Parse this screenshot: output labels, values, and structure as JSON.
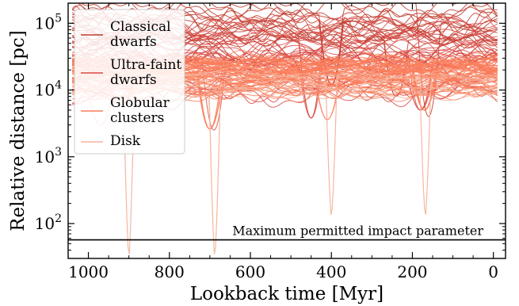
{
  "chart_data": {
    "type": "line",
    "xlabel": "Lookback time [Myr]",
    "ylabel": "Relative distance [pc]",
    "x_range": [
      1050,
      -30
    ],
    "x_reversed": true,
    "y_range": [
      30,
      200000
    ],
    "y_scale": "log",
    "x_ticks": [
      {
        "value": 1000,
        "label": "1000"
      },
      {
        "value": 800,
        "label": "800"
      },
      {
        "value": 600,
        "label": "600"
      },
      {
        "value": 400,
        "label": "400"
      },
      {
        "value": 200,
        "label": "200"
      },
      {
        "value": 0,
        "label": "0"
      }
    ],
    "y_ticks": [
      {
        "value": 100,
        "base": "10",
        "exp": "2"
      },
      {
        "value": 1000,
        "base": "10",
        "exp": "3"
      },
      {
        "value": 10000,
        "base": "10",
        "exp": "4"
      },
      {
        "value": 100000,
        "base": "10",
        "exp": "5"
      }
    ],
    "legend": {
      "placement": "top-left",
      "entries": [
        {
          "lines": [
            "Classical",
            "dwarfs"
          ],
          "color": "#c0392b"
        },
        {
          "lines": [
            "Ultra-faint",
            "dwarfs"
          ],
          "color": "#d94a45"
        },
        {
          "lines": [
            "Globular",
            "clusters"
          ],
          "color": "#fa7e5c"
        },
        {
          "lines": [
            "Disk"
          ],
          "color": "#f5b39a"
        }
      ]
    },
    "threshold": {
      "value": 57,
      "label": "Maximum permitted impact parameter",
      "color": "#000000"
    },
    "series_groups": [
      {
        "name": "Classical dwarfs",
        "color": "#c0392b",
        "count": 22,
        "level_min": 25000,
        "level_max": 180000,
        "spread": 0.35,
        "dips": [
          {
            "t": 400,
            "min": 12000
          },
          {
            "t": 240,
            "min": 8000
          },
          {
            "t": 160,
            "min": 4000
          }
        ]
      },
      {
        "name": "Ultra-faint dwarfs",
        "color": "#d94a45",
        "count": 30,
        "level_min": 8000,
        "level_max": 90000,
        "spread": 0.35,
        "dips": [
          {
            "t": 690,
            "min": 2500
          },
          {
            "t": 450,
            "min": 3800
          },
          {
            "t": 180,
            "min": 5000
          }
        ]
      },
      {
        "name": "Globular clusters",
        "color": "#fa7e5c",
        "count": 60,
        "level_min": 9000,
        "level_max": 30000,
        "spread": 0.2,
        "dips": [
          {
            "t": 700,
            "min": 2600
          },
          {
            "t": 410,
            "min": 3600
          },
          {
            "t": 170,
            "min": 5000
          },
          {
            "t": 920,
            "min": 6000
          }
        ]
      },
      {
        "name": "Disk",
        "color": "#f5b39a",
        "count": 10,
        "level_min": 8000,
        "level_max": 22000,
        "spread": 0.15,
        "dips": [
          {
            "t": 900,
            "min": 30
          },
          {
            "t": 688,
            "min": 30
          },
          {
            "t": 400,
            "min": 120
          },
          {
            "t": 168,
            "min": 120
          },
          {
            "t": 970,
            "min": 3000
          }
        ]
      }
    ]
  }
}
